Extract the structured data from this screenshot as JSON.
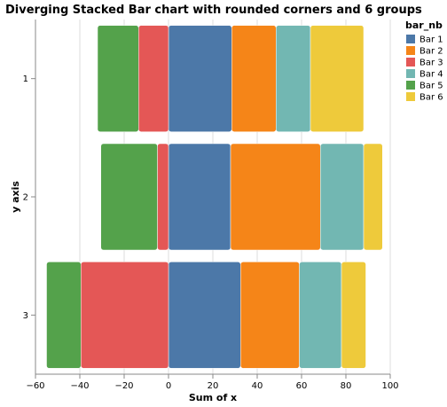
{
  "chart_data": {
    "type": "bar",
    "orientation": "horizontal",
    "stacked": "diverging",
    "title": "Diverging Stacked Bar chart with rounded corners and 6 groups",
    "xlabel": "Sum of x",
    "ylabel": "y axis",
    "xlim": [
      -60,
      100
    ],
    "xticks": [
      -60,
      -40,
      -20,
      0,
      20,
      40,
      60,
      80,
      100
    ],
    "categories": [
      "1",
      "2",
      "3"
    ],
    "grid": true,
    "legend": {
      "title": "bar_nb",
      "placement": "right"
    },
    "series": [
      {
        "name": "Bar 1",
        "color": "#4c78a8",
        "values": [
          28.5,
          28,
          32.5
        ]
      },
      {
        "name": "Bar 2",
        "color": "#f58518",
        "values": [
          20,
          40.5,
          26.5
        ]
      },
      {
        "name": "Bar 3",
        "color": "#e45756",
        "values": [
          -13.5,
          -5,
          -39.5
        ]
      },
      {
        "name": "Bar 4",
        "color": "#72b7b2",
        "values": [
          15.5,
          19.5,
          19
        ]
      },
      {
        "name": "Bar 5",
        "color": "#54a24b",
        "values": [
          -18.5,
          -25.5,
          -15.5
        ]
      },
      {
        "name": "Bar 6",
        "color": "#eeca3b",
        "values": [
          24,
          8.5,
          11
        ]
      }
    ]
  }
}
